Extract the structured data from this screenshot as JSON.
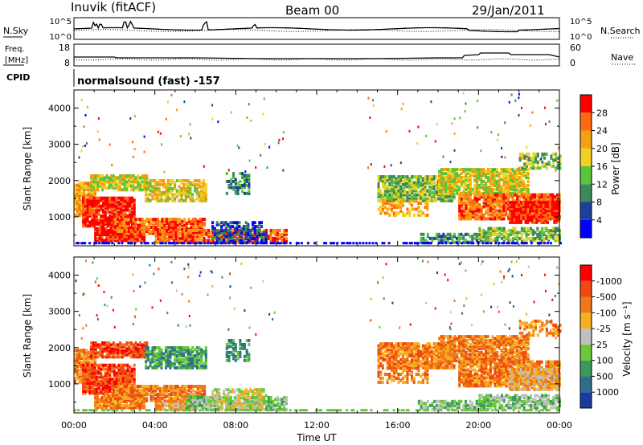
{
  "header": {
    "station": "Inuvik (fitACF)",
    "beam": "Beam 00",
    "date": "29/Jan/2011"
  },
  "summary_panels": {
    "noise": {
      "left_label": "N.Sky",
      "right_label": "N.Search",
      "left_ticks": [
        "10^5",
        "10^0"
      ],
      "right_ticks": [
        "10^5",
        "10^0"
      ]
    },
    "freq": {
      "left_label_1": "Freq.",
      "left_label_2": "[MHz]",
      "right_label": "Nave",
      "left_ticks": [
        "18",
        "8"
      ],
      "right_ticks": [
        "60",
        "0"
      ]
    },
    "cpid": {
      "label": "CPID",
      "text": "normalsound (fast) -157"
    }
  },
  "chart_data": [
    {
      "type": "heatmap",
      "name": "power",
      "ylabel": "Slant Range [km]",
      "ylim": [
        200,
        4500
      ],
      "xlim": [
        "00:00",
        "24:00"
      ],
      "yticks": [
        "1000",
        "2000",
        "3000",
        "4000"
      ],
      "colorbar": {
        "label": "Power [dB]",
        "tick_labels": [
          "4",
          "8",
          "12",
          "16",
          "20",
          "24",
          "28"
        ],
        "colors": [
          "#0000ff",
          "#1e3f9a",
          "#3a8a5a",
          "#5ac43a",
          "#f0d020",
          "#f5a010",
          "#ff6a10",
          "#ff0000"
        ]
      }
    },
    {
      "type": "heatmap",
      "name": "velocity",
      "ylabel": "Slant Range [km]",
      "ylim": [
        200,
        4500
      ],
      "xlim": [
        "00:00",
        "24:00"
      ],
      "xlabel": "Time UT",
      "yticks": [
        "1000",
        "2000",
        "3000",
        "4000"
      ],
      "xticks": [
        "00:00",
        "04:00",
        "08:00",
        "12:00",
        "16:00",
        "20:00",
        "00:00"
      ],
      "colorbar": {
        "label": "Velocity [m s⁻¹]",
        "tick_labels": [
          "1000",
          "500",
          "100",
          "25",
          "-25",
          "-100",
          "-500",
          "-1000"
        ],
        "colors": [
          "#1a3aa0",
          "#2e6e8c",
          "#3a9a5a",
          "#6ac83a",
          "#c0c0c0",
          "#f5b020",
          "#f07818",
          "#f04810",
          "#ff0000"
        ]
      }
    }
  ]
}
